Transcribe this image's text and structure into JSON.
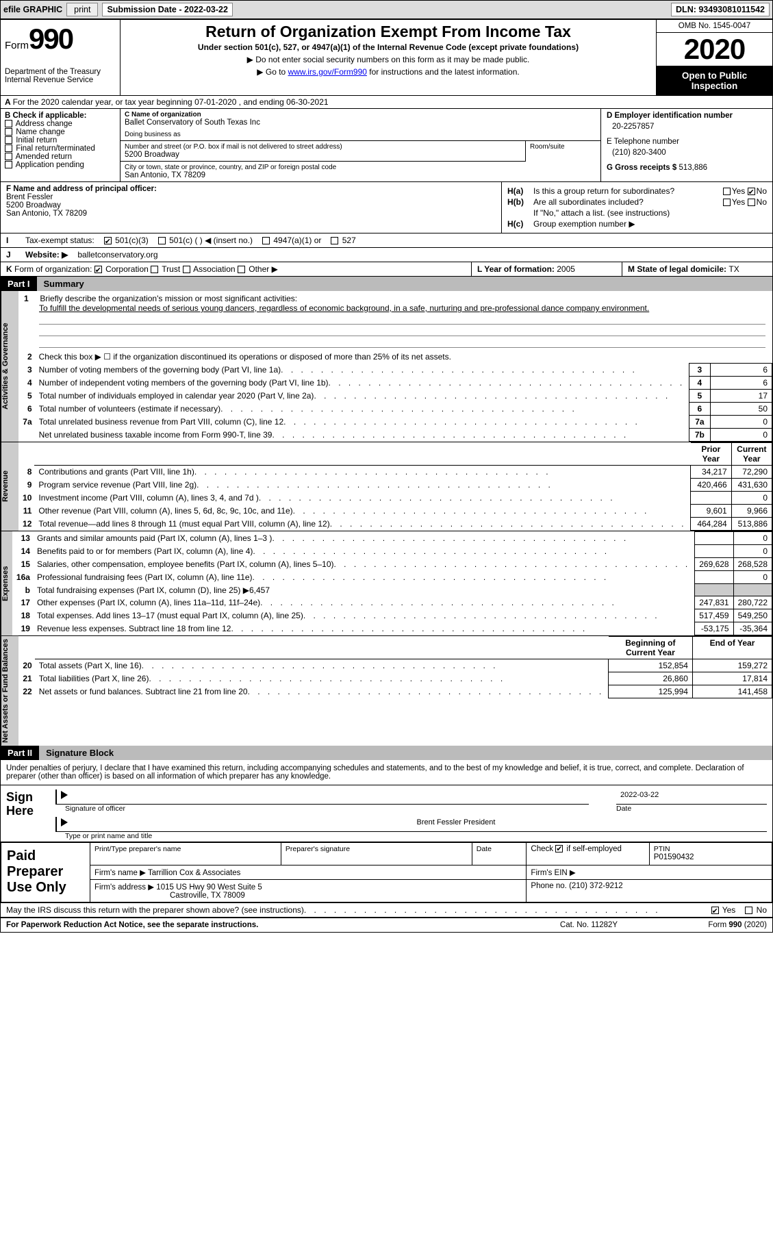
{
  "topbar": {
    "efile_label": "efile GRAPHIC",
    "print_label": "print",
    "submission_label": "Submission Date - 2022-03-22",
    "dln_label": "DLN: 93493081011542"
  },
  "header": {
    "form_word": "Form",
    "form_num": "990",
    "dept": "Department of the Treasury\nInternal Revenue Service",
    "title": "Return of Organization Exempt From Income Tax",
    "subtitle": "Under section 501(c), 527, or 4947(a)(1) of the Internal Revenue Code (except private foundations)",
    "line1": "▶ Do not enter social security numbers on this form as it may be made public.",
    "line2_pre": "▶ Go to ",
    "line2_link": "www.irs.gov/Form990",
    "line2_post": " for instructions and the latest information.",
    "omb": "OMB No. 1545-0047",
    "year": "2020",
    "open": "Open to Public Inspection"
  },
  "a_line": "For the 2020 calendar year, or tax year beginning 07-01-2020   , and ending 06-30-2021",
  "b": {
    "heading": "B Check if applicable:",
    "opts": [
      "Address change",
      "Name change",
      "Initial return",
      "Final return/terminated",
      "Amended return",
      "Application pending"
    ]
  },
  "c": {
    "name_lbl": "C Name of organization",
    "name": "Ballet Conservatory of South Texas Inc",
    "dba_lbl": "Doing business as",
    "dba": "",
    "street_lbl": "Number and street (or P.O. box if mail is not delivered to street address)",
    "room_lbl": "Room/suite",
    "street": "5200 Broadway",
    "city_lbl": "City or town, state or province, country, and ZIP or foreign postal code",
    "city": "San Antonio, TX  78209"
  },
  "d": {
    "ein_lbl": "D Employer identification number",
    "ein": "20-2257857",
    "phone_lbl": "E Telephone number",
    "phone": "(210) 820-3400",
    "gross_lbl": "G Gross receipts $ ",
    "gross": "513,886"
  },
  "f": {
    "lbl": "F  Name and address of principal officer:",
    "name": "Brent Fessler",
    "addr1": "5200 Broadway",
    "addr2": "San Antonio, TX  78209"
  },
  "h": {
    "a_lbl": "H(a)",
    "a_txt": "Is this a group return for subordinates?",
    "a_yes": "Yes",
    "a_no": "No",
    "b_lbl": "H(b)",
    "b_txt": "Are all subordinates included?",
    "b_note": "If \"No,\" attach a list. (see instructions)",
    "c_lbl": "H(c)",
    "c_txt": "Group exemption number ▶"
  },
  "i": {
    "ltr": "I",
    "lbl": "Tax-exempt status:",
    "o1": "501(c)(3)",
    "o2": "501(c) (  )  ◀ (insert no.)",
    "o3": "4947(a)(1) or",
    "o4": "527"
  },
  "j": {
    "ltr": "J",
    "lbl": "Website: ▶",
    "val": "balletconservatory.org"
  },
  "k": {
    "ltr": "K",
    "lbl": "Form of organization:",
    "o1": "Corporation",
    "o2": "Trust",
    "o3": "Association",
    "o4": "Other ▶"
  },
  "l": {
    "lbl": "L Year of formation: ",
    "val": "2005"
  },
  "m": {
    "lbl": "M State of legal domicile: ",
    "val": "TX"
  },
  "part1": {
    "label": "Part I",
    "title": "Summary"
  },
  "mission": {
    "num": "1",
    "lbl": "Briefly describe the organization's mission or most significant activities:",
    "text": "To fulfill the developmental needs of serious young dancers, regardless of economic background, in a safe, nurturing and pre-professional dance company environment."
  },
  "gov_rows": [
    {
      "n": "2",
      "t": "Check this box ▶ ☐  if the organization discontinued its operations or disposed of more than 25% of its net assets."
    },
    {
      "n": "3",
      "t": "Number of voting members of the governing body (Part VI, line 1a)",
      "box": "3",
      "v": "6"
    },
    {
      "n": "4",
      "t": "Number of independent voting members of the governing body (Part VI, line 1b)",
      "box": "4",
      "v": "6"
    },
    {
      "n": "5",
      "t": "Total number of individuals employed in calendar year 2020 (Part V, line 2a)",
      "box": "5",
      "v": "17"
    },
    {
      "n": "6",
      "t": "Total number of volunteers (estimate if necessary)",
      "box": "6",
      "v": "50"
    },
    {
      "n": "7a",
      "t": "Total unrelated business revenue from Part VIII, column (C), line 12",
      "box": "7a",
      "v": "0"
    },
    {
      "n": "",
      "t": "Net unrelated business taxable income from Form 990-T, line 39",
      "box": "7b",
      "v": "0"
    }
  ],
  "col_hdr": {
    "prior": "Prior Year",
    "current": "Current Year"
  },
  "rev_rows": [
    {
      "n": "8",
      "t": "Contributions and grants (Part VIII, line 1h)",
      "p": "34,217",
      "c": "72,290"
    },
    {
      "n": "9",
      "t": "Program service revenue (Part VIII, line 2g)",
      "p": "420,466",
      "c": "431,630"
    },
    {
      "n": "10",
      "t": "Investment income (Part VIII, column (A), lines 3, 4, and 7d )",
      "p": "",
      "c": "0"
    },
    {
      "n": "11",
      "t": "Other revenue (Part VIII, column (A), lines 5, 6d, 8c, 9c, 10c, and 11e)",
      "p": "9,601",
      "c": "9,966"
    },
    {
      "n": "12",
      "t": "Total revenue—add lines 8 through 11 (must equal Part VIII, column (A), line 12)",
      "p": "464,284",
      "c": "513,886"
    }
  ],
  "exp_rows": [
    {
      "n": "13",
      "t": "Grants and similar amounts paid (Part IX, column (A), lines 1–3 )",
      "p": "",
      "c": "0"
    },
    {
      "n": "14",
      "t": "Benefits paid to or for members (Part IX, column (A), line 4)",
      "p": "",
      "c": "0"
    },
    {
      "n": "15",
      "t": "Salaries, other compensation, employee benefits (Part IX, column (A), lines 5–10)",
      "p": "269,628",
      "c": "268,528"
    },
    {
      "n": "16a",
      "t": "Professional fundraising fees (Part IX, column (A), line 11e)",
      "p": "",
      "c": "0"
    },
    {
      "n": "b",
      "t": "Total fundraising expenses (Part IX, column (D), line 25) ▶6,457",
      "shade": true
    },
    {
      "n": "17",
      "t": "Other expenses (Part IX, column (A), lines 11a–11d, 11f–24e)",
      "p": "247,831",
      "c": "280,722"
    },
    {
      "n": "18",
      "t": "Total expenses. Add lines 13–17 (must equal Part IX, column (A), line 25)",
      "p": "517,459",
      "c": "549,250"
    },
    {
      "n": "19",
      "t": "Revenue less expenses. Subtract line 18 from line 12",
      "p": "-53,175",
      "c": "-35,364"
    }
  ],
  "na_hdr": {
    "begin": "Beginning of Current Year",
    "end": "End of Year"
  },
  "na_rows": [
    {
      "n": "20",
      "t": "Total assets (Part X, line 16)",
      "p": "152,854",
      "c": "159,272"
    },
    {
      "n": "21",
      "t": "Total liabilities (Part X, line 26)",
      "p": "26,860",
      "c": "17,814"
    },
    {
      "n": "22",
      "t": "Net assets or fund balances. Subtract line 21 from line 20",
      "p": "125,994",
      "c": "141,458"
    }
  ],
  "tabs": {
    "gov": "Activities & Governance",
    "rev": "Revenue",
    "exp": "Expenses",
    "na": "Net Assets or Fund Balances"
  },
  "part2": {
    "label": "Part II",
    "title": "Signature Block"
  },
  "penalties": "Under penalties of perjury, I declare that I have examined this return, including accompanying schedules and statements, and to the best of my knowledge and belief, it is true, correct, and complete. Declaration of preparer (other than officer) is based on all information of which preparer has any knowledge.",
  "sign": {
    "here": "Sign Here",
    "sig_lbl": "Signature of officer",
    "date_lbl": "Date",
    "date": "2022-03-22",
    "name": "Brent Fessler  President",
    "name_lbl": "Type or print name and title"
  },
  "prep": {
    "side": "Paid Preparer Use Only",
    "h1": "Print/Type preparer's name",
    "h2": "Preparer's signature",
    "h3": "Date",
    "h4_pre": "Check ",
    "h4_post": " if self-employed",
    "h5": "PTIN",
    "ptin": "P01590432",
    "firm_lbl": "Firm's name    ▶",
    "firm": "Tarrillion Cox & Associates",
    "ein_lbl": "Firm's EIN ▶",
    "addr_lbl": "Firm's address ▶",
    "addr1": "1015 US Hwy 90 West Suite 5",
    "addr2": "Castroville, TX  78009",
    "phone_lbl": "Phone no. ",
    "phone": "(210) 372-9212"
  },
  "discuss": {
    "txt": "May the IRS discuss this return with the preparer shown above? (see instructions)",
    "yes": "Yes",
    "no": "No"
  },
  "footer": {
    "left": "For Paperwork Reduction Act Notice, see the separate instructions.",
    "mid": "Cat. No. 11282Y",
    "right": "Form 990 (2020)"
  }
}
